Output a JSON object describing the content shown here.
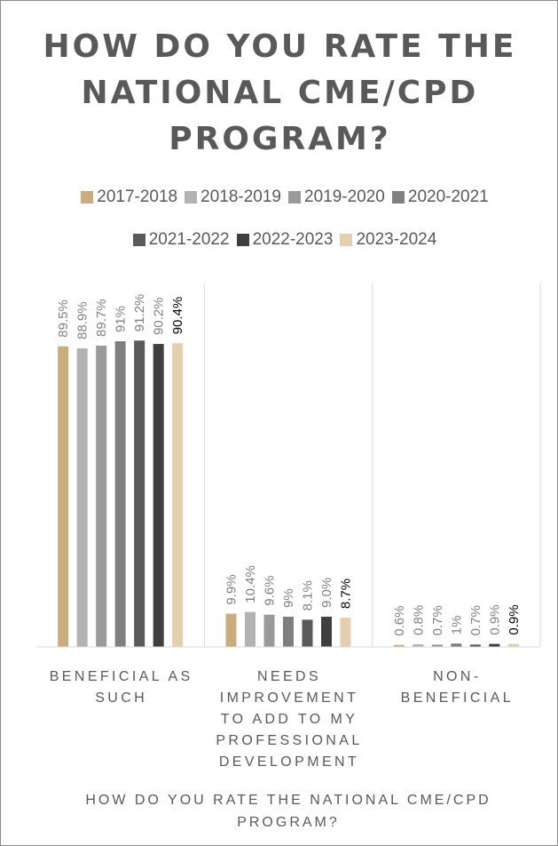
{
  "chart_data": {
    "type": "bar",
    "title": "HOW DO YOU RATE THE NATIONAL CME/CPD PROGRAM?",
    "xlabel": "HOW DO YOU RATE THE NATIONAL CME/CPD PROGRAM?",
    "ylabel": "",
    "ylim": [
      0,
      100
    ],
    "grid": false,
    "legend_position": "top",
    "categories": [
      [
        "BENEFICIAL AS",
        "SUCH"
      ],
      [
        "NEEDS",
        "IMPROVEMENT",
        "TO ADD TO MY",
        "PROFESSIONAL",
        "DEVELOPMENT"
      ],
      [
        "NON-",
        "BENEFICIAL"
      ]
    ],
    "series": [
      {
        "name": "2017-2018",
        "color": "#c9ad7f",
        "values": [
          89.5,
          9.9,
          0.6
        ],
        "labels": [
          "89.5%",
          "9.9%",
          "0.6%"
        ]
      },
      {
        "name": "2018-2019",
        "color": "#b3b3b3",
        "values": [
          88.9,
          10.4,
          0.8
        ],
        "labels": [
          "88.9%",
          "10.4%",
          "0.8%"
        ]
      },
      {
        "name": "2019-2020",
        "color": "#9a9a9a",
        "values": [
          89.7,
          9.6,
          0.7
        ],
        "labels": [
          "89.7%",
          "9.6%",
          "0.7%"
        ]
      },
      {
        "name": "2020-2021",
        "color": "#7f7f7f",
        "values": [
          91,
          9,
          1
        ],
        "labels": [
          "91%",
          "9%",
          "1%"
        ]
      },
      {
        "name": "2021-2022",
        "color": "#5a5a5a",
        "values": [
          91.2,
          8.1,
          0.7
        ],
        "labels": [
          "91.2%",
          "8.1%",
          "0.7%"
        ]
      },
      {
        "name": "2022-2023",
        "color": "#3f3f3f",
        "values": [
          90.2,
          9.0,
          0.9
        ],
        "labels": [
          "90.2%",
          "9.0%",
          "0.9%"
        ]
      },
      {
        "name": "2023-2024",
        "color": "#e3cfb0",
        "values": [
          90.4,
          8.7,
          0.9
        ],
        "labels": [
          "90.4%",
          "8.7%",
          "0.9%"
        ],
        "highlight": true
      }
    ]
  }
}
